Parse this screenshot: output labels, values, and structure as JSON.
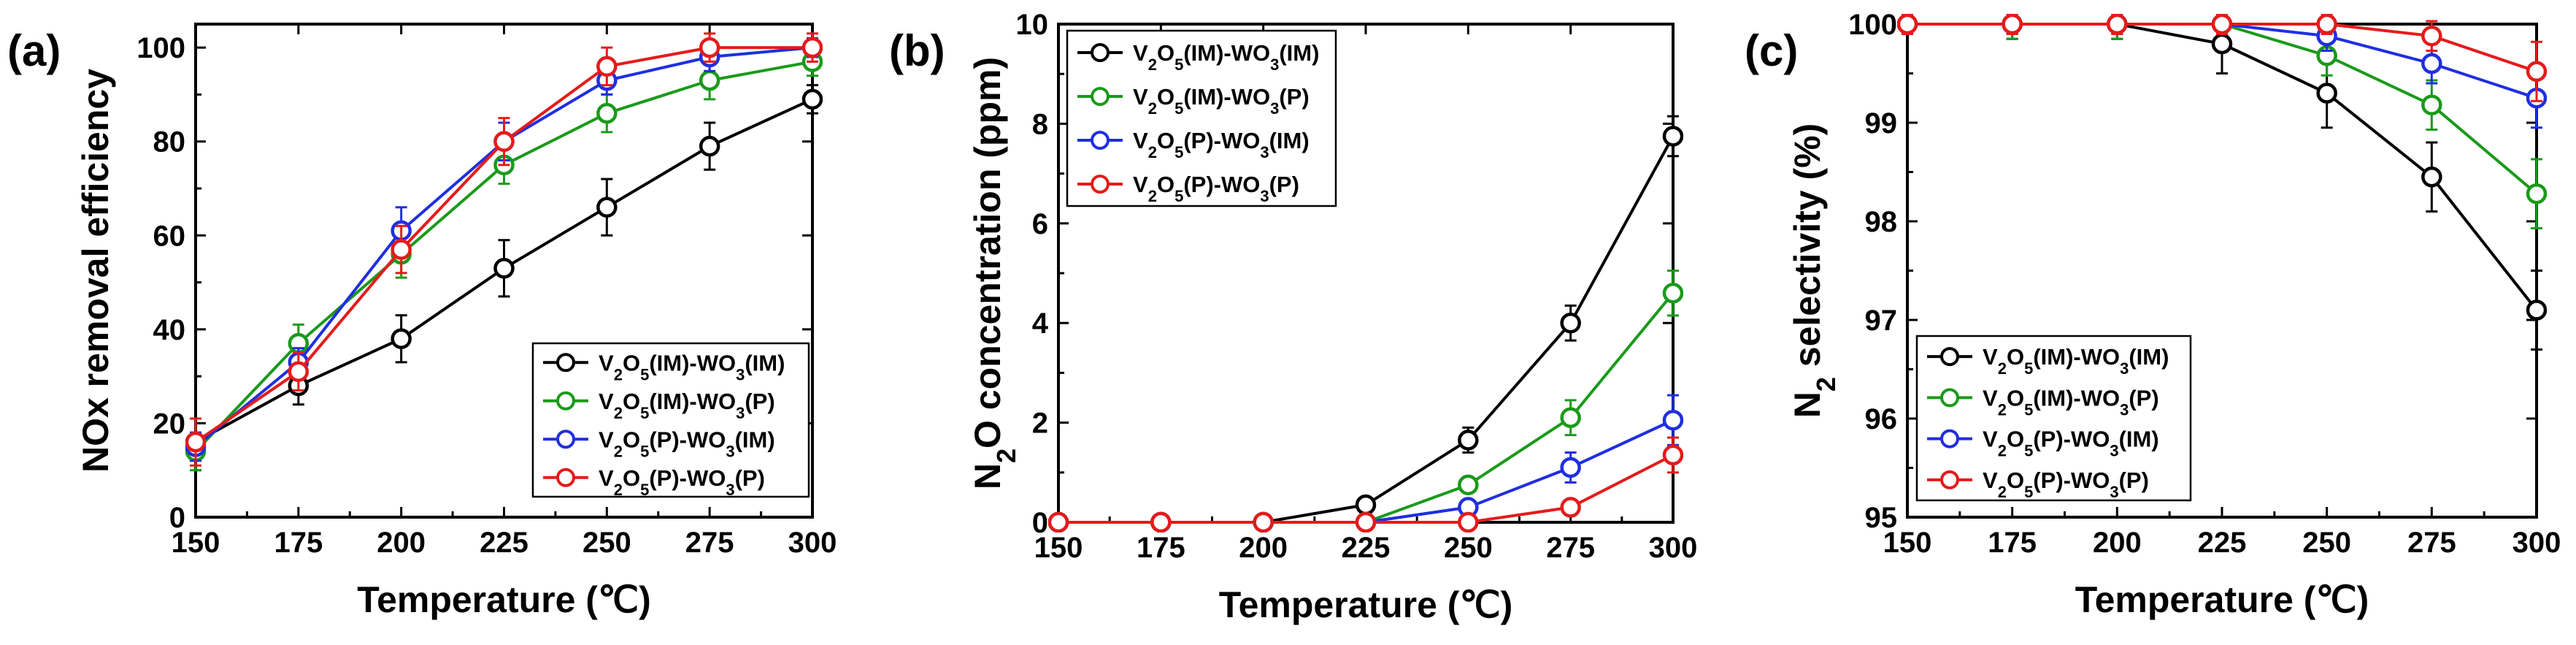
{
  "chart_data": [
    {
      "type": "line",
      "panel_label": "(a)",
      "title": "",
      "xlabel": "Temperature (℃)",
      "ylabel": "NOx removal efficiency",
      "xlim": [
        150,
        300
      ],
      "ylim": [
        0,
        105
      ],
      "xticks": [
        150,
        175,
        200,
        225,
        250,
        275,
        300
      ],
      "yticks": [
        0,
        20,
        40,
        60,
        80,
        100
      ],
      "x": [
        150,
        175,
        200,
        225,
        250,
        275,
        300
      ],
      "legend_position": "bottom-right",
      "series": [
        {
          "name": "V2O5(IM)-WO3(IM)",
          "label_parts": [
            "V",
            "2",
            "O",
            "5",
            "(IM)-WO",
            "3",
            "(IM)"
          ],
          "color": "#000000",
          "values": [
            16,
            28,
            38,
            53,
            66,
            79,
            89
          ],
          "errors": [
            2,
            4,
            5,
            6,
            6,
            5,
            3
          ]
        },
        {
          "name": "V2O5(IM)-WO3(P)",
          "label_parts": [
            "V",
            "2",
            "O",
            "5",
            "(IM)-WO",
            "3",
            "(P)"
          ],
          "color": "#1a9a1a",
          "values": [
            14,
            37,
            56,
            75,
            86,
            93,
            97
          ],
          "errors": [
            4,
            4,
            5,
            4,
            4,
            4,
            3
          ]
        },
        {
          "name": "V2O5(P)-WO3(IM)",
          "label_parts": [
            "V",
            "2",
            "O",
            "5",
            "(P)-WO",
            "3",
            "(IM)"
          ],
          "color": "#1f2fe0",
          "values": [
            15,
            33,
            61,
            80,
            93,
            98,
            100
          ],
          "errors": [
            3,
            3,
            5,
            4,
            3,
            3,
            2
          ]
        },
        {
          "name": "V2O5(P)-WO3(P)",
          "label_parts": [
            "V",
            "2",
            "O",
            "5",
            "(P)-WO",
            "3",
            "(P)"
          ],
          "color": "#e51b1b",
          "values": [
            16,
            31,
            57,
            80,
            96,
            100,
            100
          ],
          "errors": [
            5,
            4,
            5,
            5,
            4,
            3,
            3
          ]
        }
      ]
    },
    {
      "type": "line",
      "panel_label": "(b)",
      "title": "",
      "xlabel": "Temperature (℃)",
      "ylabel": "N2O concentration (ppm)",
      "ylabel_parts": [
        "N",
        "2",
        "O concentration (ppm)"
      ],
      "xlim": [
        150,
        300
      ],
      "ylim": [
        0,
        10
      ],
      "xticks": [
        150,
        175,
        200,
        225,
        250,
        275,
        300
      ],
      "yticks": [
        0,
        2,
        4,
        6,
        8,
        10
      ],
      "x": [
        150,
        175,
        200,
        225,
        250,
        275,
        300
      ],
      "legend_position": "top-left",
      "series": [
        {
          "name": "V2O5(IM)-WO3(IM)",
          "label_parts": [
            "V",
            "2",
            "O",
            "5",
            "(IM)-WO",
            "3",
            "(IM)"
          ],
          "color": "#000000",
          "values": [
            0,
            0,
            0,
            0.35,
            1.65,
            4.0,
            7.75
          ],
          "errors": [
            0,
            0,
            0,
            0.05,
            0.25,
            0.35,
            0.4
          ]
        },
        {
          "name": "V2O5(IM)-WO3(P)",
          "label_parts": [
            "V",
            "2",
            "O",
            "5",
            "(IM)-WO",
            "3",
            "(P)"
          ],
          "color": "#1a9a1a",
          "values": [
            0,
            0,
            0,
            0,
            0.75,
            2.1,
            4.6
          ],
          "errors": [
            0,
            0,
            0,
            0,
            0.15,
            0.35,
            0.45
          ]
        },
        {
          "name": "V2O5(P)-WO3(IM)",
          "label_parts": [
            "V",
            "2",
            "O",
            "5",
            "(P)-WO",
            "3",
            "(IM)"
          ],
          "color": "#1f2fe0",
          "values": [
            0,
            0,
            0,
            0,
            0.3,
            1.1,
            2.05
          ],
          "errors": [
            0,
            0,
            0,
            0,
            0.1,
            0.3,
            0.5
          ]
        },
        {
          "name": "V2O5(P)-WO3(P)",
          "label_parts": [
            "V",
            "2",
            "O",
            "5",
            "(P)-WO",
            "3",
            "(P)"
          ],
          "color": "#e51b1b",
          "values": [
            0,
            0,
            0,
            0,
            0,
            0.3,
            1.35
          ],
          "errors": [
            0,
            0,
            0,
            0,
            0,
            0.05,
            0.35
          ]
        }
      ]
    },
    {
      "type": "line",
      "panel_label": "(c)",
      "title": "",
      "xlabel": "Temperature (℃)",
      "ylabel": "N2 selectivity (%)",
      "ylabel_parts": [
        "N",
        "2",
        " selectivity (%)"
      ],
      "xlim": [
        150,
        300
      ],
      "ylim": [
        95,
        100
      ],
      "xticks": [
        150,
        175,
        200,
        225,
        250,
        275,
        300
      ],
      "yticks": [
        95,
        96,
        97,
        98,
        99,
        100
      ],
      "x": [
        150,
        175,
        200,
        225,
        250,
        275,
        300
      ],
      "legend_position": "bottom-left",
      "series": [
        {
          "name": "V2O5(IM)-WO3(IM)",
          "label_parts": [
            "V",
            "2",
            "O",
            "5",
            "(IM)-WO",
            "3",
            "(IM)"
          ],
          "color": "#000000",
          "values": [
            100,
            100,
            100,
            99.8,
            99.3,
            98.45,
            97.1
          ],
          "errors": [
            0.1,
            0.15,
            0.15,
            0.3,
            0.35,
            0.35,
            0.4
          ]
        },
        {
          "name": "V2O5(IM)-WO3(P)",
          "label_parts": [
            "V",
            "2",
            "O",
            "5",
            "(IM)-WO",
            "3",
            "(P)"
          ],
          "color": "#1a9a1a",
          "values": [
            100,
            100,
            100,
            100,
            99.68,
            99.18,
            98.28
          ],
          "errors": [
            0.1,
            0.15,
            0.15,
            0.1,
            0.2,
            0.25,
            0.35
          ]
        },
        {
          "name": "V2O5(P)-WO3(IM)",
          "label_parts": [
            "V",
            "2",
            "O",
            "5",
            "(P)-WO",
            "3",
            "(IM)"
          ],
          "color": "#1f2fe0",
          "values": [
            100,
            100,
            100,
            100,
            99.88,
            99.6,
            99.25
          ],
          "errors": [
            0.1,
            0.1,
            0.1,
            0.1,
            0.15,
            0.2,
            0.3
          ]
        },
        {
          "name": "V2O5(P)-WO3(P)",
          "label_parts": [
            "V",
            "2",
            "O",
            "5",
            "(P)-WO",
            "3",
            "(P)"
          ],
          "color": "#e51b1b",
          "values": [
            100,
            100,
            100,
            100,
            100,
            99.88,
            99.52
          ],
          "errors": [
            0.1,
            0.1,
            0.1,
            0.1,
            0.1,
            0.15,
            0.3
          ]
        }
      ]
    }
  ]
}
